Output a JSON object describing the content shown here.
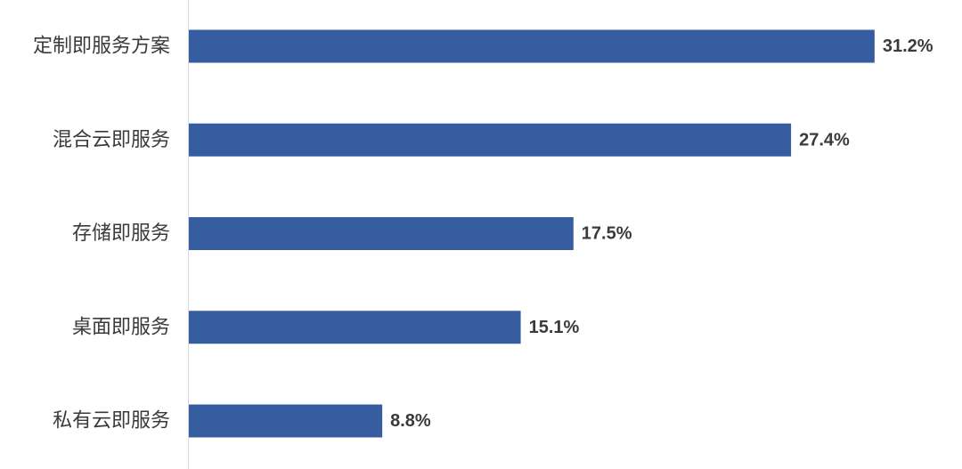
{
  "chart_data": {
    "type": "bar",
    "orientation": "horizontal",
    "categories": [
      "定制即服务方案",
      "混合云即服务",
      "存储即服务",
      "桌面即服务",
      "私有云即服务"
    ],
    "values": [
      31.2,
      27.4,
      17.5,
      15.1,
      8.8
    ],
    "value_labels": [
      "31.2%",
      "27.4%",
      "17.5%",
      "15.1%",
      "8.8%"
    ],
    "value_unit": "%",
    "title": "",
    "xlabel": "",
    "ylabel": "",
    "xlim": [
      0,
      32.3
    ],
    "grid": false,
    "legend": "none",
    "colors": {
      "bar": "#365da0",
      "axis": "#d9d9d9",
      "text": "#3a3a3a"
    }
  }
}
